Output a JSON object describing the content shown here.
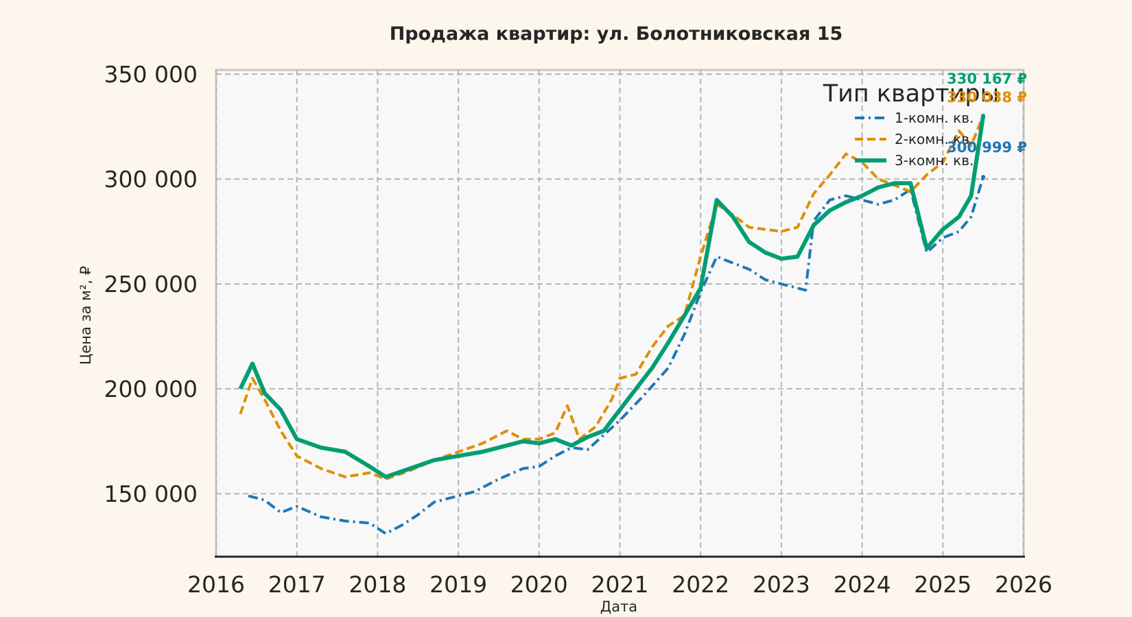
{
  "chart_data": {
    "type": "line",
    "title": "Продажа квартир: ул. Болотниковская 15",
    "xlabel": "Дата",
    "ylabel": "Цена за м², ₽",
    "xlim": [
      2016.0,
      2026.0
    ],
    "ylim": [
      120000,
      352000
    ],
    "x_ticks": [
      {
        "value": 2016,
        "label": "2016"
      },
      {
        "value": 2017,
        "label": "2017"
      },
      {
        "value": 2018,
        "label": "2018"
      },
      {
        "value": 2019,
        "label": "2019"
      },
      {
        "value": 2020,
        "label": "2020"
      },
      {
        "value": 2021,
        "label": "2021"
      },
      {
        "value": 2022,
        "label": "2022"
      },
      {
        "value": 2023,
        "label": "2023"
      },
      {
        "value": 2024,
        "label": "2024"
      },
      {
        "value": 2025,
        "label": "2025"
      },
      {
        "value": 2026,
        "label": "2026"
      }
    ],
    "y_ticks": [
      {
        "value": 150000,
        "label": "150 000"
      },
      {
        "value": 200000,
        "label": "200 000"
      },
      {
        "value": 250000,
        "label": "250 000"
      },
      {
        "value": 300000,
        "label": "300 000"
      },
      {
        "value": 350000,
        "label": "350 000"
      }
    ],
    "grid": true,
    "legend": {
      "title": "Тип квартиры",
      "position": "top-right"
    },
    "series": [
      {
        "name": "1-комн. кв.",
        "color": "#1f77b4",
        "dash": "dashdot",
        "end_label": "300 999 ₽",
        "x": [
          2016.4,
          2016.6,
          2016.8,
          2017.0,
          2017.3,
          2017.6,
          2017.9,
          2018.1,
          2018.3,
          2018.5,
          2018.7,
          2018.9,
          2019.2,
          2019.5,
          2019.8,
          2020.0,
          2020.2,
          2020.4,
          2020.6,
          2020.8,
          2021.0,
          2021.3,
          2021.6,
          2021.8,
          2022.0,
          2022.2,
          2022.4,
          2022.6,
          2022.8,
          2023.0,
          2023.2,
          2023.3,
          2023.4,
          2023.6,
          2023.8,
          2024.0,
          2024.2,
          2024.4,
          2024.6,
          2024.8,
          2025.0,
          2025.2,
          2025.35,
          2025.5
        ],
        "values": [
          149000,
          147000,
          141000,
          144000,
          139000,
          137000,
          136000,
          131000,
          135000,
          140000,
          146000,
          148000,
          151000,
          157000,
          162000,
          163000,
          168000,
          172000,
          171000,
          178000,
          185000,
          197000,
          210000,
          226000,
          246000,
          263000,
          260000,
          257000,
          252000,
          250000,
          248000,
          247000,
          280000,
          290000,
          292000,
          290000,
          288000,
          290000,
          295000,
          265000,
          272000,
          275000,
          282000,
          300999
        ]
      },
      {
        "name": "2-комн. кв.",
        "color": "#de8f05",
        "dash": "dashed",
        "end_label": "330 038 ₽",
        "x": [
          2016.3,
          2016.45,
          2016.6,
          2016.8,
          2017.0,
          2017.3,
          2017.6,
          2017.9,
          2018.1,
          2018.4,
          2018.7,
          2019.0,
          2019.3,
          2019.6,
          2019.8,
          2020.0,
          2020.2,
          2020.35,
          2020.5,
          2020.7,
          2020.9,
          2021.0,
          2021.2,
          2021.4,
          2021.6,
          2021.8,
          2022.0,
          2022.2,
          2022.4,
          2022.6,
          2022.8,
          2023.0,
          2023.2,
          2023.4,
          2023.6,
          2023.8,
          2024.0,
          2024.2,
          2024.4,
          2024.6,
          2024.8,
          2025.0,
          2025.2,
          2025.35,
          2025.5
        ],
        "values": [
          188000,
          205000,
          195000,
          180000,
          168000,
          162000,
          158000,
          160000,
          157000,
          161000,
          166000,
          170000,
          174000,
          180000,
          176000,
          176000,
          179000,
          192000,
          176000,
          182000,
          195000,
          205000,
          207000,
          220000,
          230000,
          235000,
          263000,
          288000,
          283000,
          277000,
          276000,
          275000,
          277000,
          293000,
          302000,
          312000,
          308000,
          300000,
          297000,
          294000,
          302000,
          308000,
          323000,
          316000,
          330038
        ]
      },
      {
        "name": "3-комн. кв.",
        "color": "#029e73",
        "dash": "solid",
        "end_label": "330 167 ₽",
        "x": [
          2016.3,
          2016.45,
          2016.6,
          2016.8,
          2017.0,
          2017.3,
          2017.6,
          2017.9,
          2018.1,
          2018.4,
          2018.7,
          2019.0,
          2019.3,
          2019.6,
          2019.8,
          2020.0,
          2020.2,
          2020.4,
          2020.6,
          2020.8,
          2021.0,
          2021.2,
          2021.4,
          2021.6,
          2021.8,
          2022.0,
          2022.2,
          2022.4,
          2022.6,
          2022.8,
          2023.0,
          2023.2,
          2023.4,
          2023.6,
          2023.8,
          2024.0,
          2024.2,
          2024.4,
          2024.6,
          2024.8,
          2025.0,
          2025.2,
          2025.35,
          2025.5
        ],
        "values": [
          200000,
          212000,
          198000,
          190000,
          176000,
          172000,
          170000,
          163000,
          158000,
          162000,
          166000,
          168000,
          170000,
          173000,
          175000,
          174000,
          176000,
          173000,
          177000,
          180000,
          190000,
          200000,
          210000,
          222000,
          235000,
          248000,
          290000,
          282000,
          270000,
          265000,
          262000,
          263000,
          278000,
          285000,
          289000,
          292000,
          296000,
          298000,
          298000,
          267000,
          276000,
          282000,
          292000,
          330167
        ]
      }
    ]
  }
}
